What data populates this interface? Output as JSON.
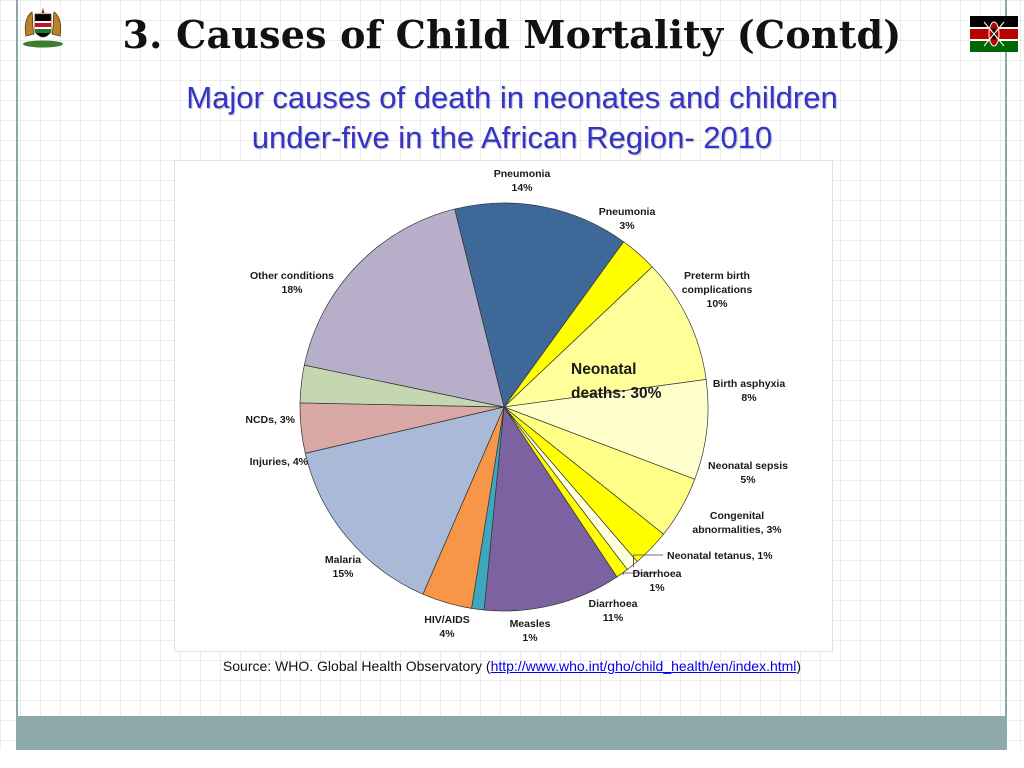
{
  "slide": {
    "title": "3. Causes of Child Mortality (Contd)",
    "subtitle_line1": "Major causes of death in neonates and children",
    "subtitle_line2": "under-five in the African Region- 2010"
  },
  "logos": {
    "left": "kenya-coat-of-arms",
    "right": "kenya-flag"
  },
  "source": {
    "prefix": "Source: WHO. Global Health Observatory (",
    "link_text": "http://www.who.int/gho/child_health/en/index.html",
    "suffix": ")"
  },
  "colors": {
    "subtitle": "#3333cc",
    "footer_band": "#8ea9a9",
    "link": "#0000ee"
  },
  "chart_data": {
    "type": "pie",
    "title": "",
    "start_angle_deg": -104,
    "direction": "clockwise",
    "annotation": {
      "line1": "Neonatal",
      "line2": "deaths: 30%"
    },
    "slices": [
      {
        "name": "Pneumonia",
        "value": 14,
        "label_lines": [
          "Pneumonia",
          "14%"
        ],
        "color": "#3e6898",
        "group": "child"
      },
      {
        "name": "Pneumonia",
        "value": 3,
        "label_lines": [
          "Pneumonia",
          "3%"
        ],
        "color": "#ffff00",
        "group": "neonatal"
      },
      {
        "name": "Preterm birth complications",
        "value": 10,
        "label_lines": [
          "Preterm birth",
          "complications",
          "10%"
        ],
        "color": "#ffff99",
        "group": "neonatal"
      },
      {
        "name": "Birth asphyxia",
        "value": 8,
        "label_lines": [
          "Birth asphyxia",
          "8%"
        ],
        "color": "#ffffcc",
        "group": "neonatal"
      },
      {
        "name": "Neonatal sepsis",
        "value": 5,
        "label_lines": [
          "Neonatal sepsis",
          "5%"
        ],
        "color": "#ffff88",
        "group": "neonatal"
      },
      {
        "name": "Congenital abnormalities",
        "value": 3,
        "label_lines": [
          "Congenital",
          "abnormalities, 3%"
        ],
        "color": "#ffff00",
        "group": "neonatal"
      },
      {
        "name": "Neonatal tetanus",
        "value": 1,
        "label_lines": [
          "Neonatal tetanus, 1%"
        ],
        "color": "#ffffdd",
        "group": "neonatal"
      },
      {
        "name": "Diarrhoea",
        "value": 1,
        "label_lines": [
          "Diarrhoea",
          "1%"
        ],
        "color": "#ffff00",
        "group": "neonatal"
      },
      {
        "name": "Diarrhoea",
        "value": 11,
        "label_lines": [
          "Diarrhoea",
          "11%"
        ],
        "color": "#7d62a1",
        "group": "child"
      },
      {
        "name": "Measles",
        "value": 1,
        "label_lines": [
          "Measles",
          "1%"
        ],
        "color": "#3fa7bd",
        "group": "child"
      },
      {
        "name": "HIV/AIDS",
        "value": 4,
        "label_lines": [
          "HIV/AIDS",
          "4%"
        ],
        "color": "#f79646",
        "group": "child"
      },
      {
        "name": "Malaria",
        "value": 15,
        "label_lines": [
          "Malaria",
          "15%"
        ],
        "color": "#a9bad8",
        "group": "child"
      },
      {
        "name": "Injuries",
        "value": 4,
        "label_lines": [
          "Injuries, 4%"
        ],
        "color": "#d9a9a6",
        "group": "child"
      },
      {
        "name": "NCDs",
        "value": 3,
        "label_lines": [
          "NCDs, 3%"
        ],
        "color": "#c4d7b1",
        "group": "child"
      },
      {
        "name": "Other conditions",
        "value": 18,
        "label_lines": [
          "Other conditions",
          "18%"
        ],
        "color": "#b7aec9",
        "group": "child"
      }
    ]
  }
}
